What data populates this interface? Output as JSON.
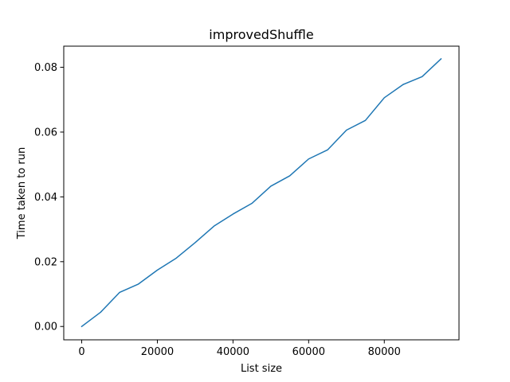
{
  "chart_data": {
    "type": "line",
    "title": "improvedShuffle",
    "xlabel": "List size",
    "ylabel": "Time taken to run",
    "xlim": [
      -4750,
      99750
    ],
    "ylim": [
      -0.00412,
      0.08652
    ],
    "xticks": [
      0,
      20000,
      40000,
      60000,
      80000
    ],
    "xtick_labels": [
      "0",
      "20000",
      "40000",
      "60000",
      "80000"
    ],
    "yticks": [
      0.0,
      0.02,
      0.04,
      0.06,
      0.08
    ],
    "ytick_labels": [
      "0.00",
      "0.02",
      "0.04",
      "0.06",
      "0.08"
    ],
    "grid": false,
    "series": [
      {
        "color": "#1f77b4",
        "x": [
          0,
          5000,
          10000,
          15000,
          20000,
          25000,
          30000,
          35000,
          40000,
          45000,
          50000,
          55000,
          60000,
          65000,
          70000,
          75000,
          80000,
          85000,
          90000,
          95000
        ],
        "y": [
          0.0,
          0.0044,
          0.0105,
          0.0131,
          0.0174,
          0.0211,
          0.0259,
          0.031,
          0.0347,
          0.038,
          0.0433,
          0.0465,
          0.0517,
          0.0545,
          0.0606,
          0.0636,
          0.0706,
          0.0747,
          0.0771,
          0.0826
        ]
      }
    ]
  }
}
